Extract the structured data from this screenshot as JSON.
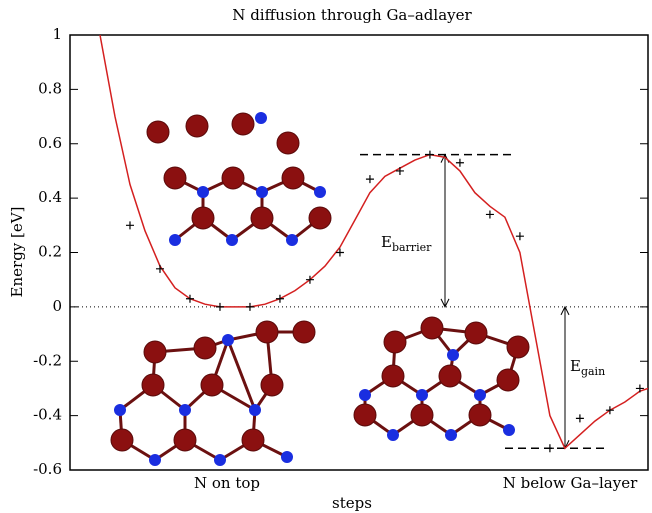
{
  "chart_data": {
    "type": "line",
    "title": "N diffusion through Ga–adlayer",
    "x_label": "steps",
    "y_label": "Energy [eV]",
    "annotations": [
      "N on top",
      "N below Ga–layer",
      "E",
      "barrier",
      "E",
      "gain"
    ],
    "xlim": [
      -1,
      18.27
    ],
    "ylim": [
      -0.6,
      1
    ],
    "yticks": [
      -0.6,
      -0.4,
      -0.2,
      0,
      0.2,
      0.4,
      0.6,
      0.8,
      1
    ],
    "reference_levels": [
      0.56,
      -0.52
    ],
    "series": [
      {
        "color": "#d42020",
        "x": [
          0,
          0.5,
          1,
          1.5,
          2,
          2.5,
          3,
          3.5,
          4,
          4.5,
          5,
          5.5,
          6,
          6.5,
          7,
          7.5,
          8,
          8.5,
          9,
          9.5,
          10,
          10.5,
          11,
          11.5,
          12,
          12.5,
          13,
          13.5,
          14,
          14.5,
          15,
          15.5,
          16,
          16.5,
          17,
          17.5,
          18,
          18.27
        ],
        "values": [
          1.0,
          0.7,
          0.45,
          0.28,
          0.15,
          0.07,
          0.03,
          0.01,
          0.0,
          0.0,
          0.0,
          0.01,
          0.03,
          0.06,
          0.1,
          0.15,
          0.22,
          0.32,
          0.42,
          0.48,
          0.51,
          0.54,
          0.56,
          0.55,
          0.5,
          0.42,
          0.37,
          0.33,
          0.2,
          -0.1,
          -0.4,
          -0.52,
          -0.47,
          -0.42,
          -0.38,
          -0.35,
          -0.31,
          -0.3
        ]
      },
      {
        "color": "#000000",
        "x": [
          1,
          2,
          3,
          4,
          5,
          6,
          7,
          8,
          9,
          10,
          11,
          12,
          13,
          14,
          15,
          16,
          17,
          18
        ],
        "values": [
          0.3,
          0.14,
          0.03,
          0.0,
          0.0,
          0.03,
          0.1,
          0.2,
          0.47,
          0.5,
          0.56,
          0.53,
          0.34,
          0.26,
          -0.52,
          -0.41,
          -0.38,
          -0.3
        ]
      }
    ]
  }
}
